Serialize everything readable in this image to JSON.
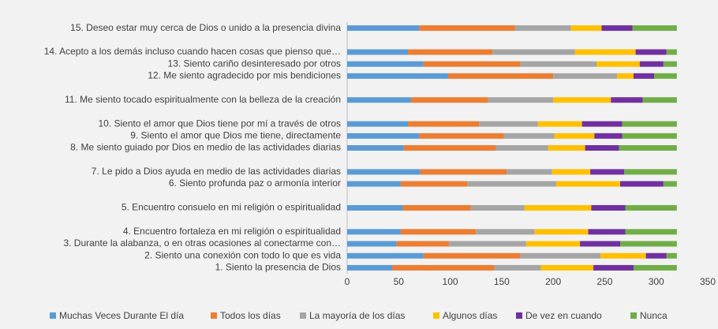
{
  "chart_data": {
    "type": "stacked_barh",
    "categories": [
      "1. Siento la presencia de Dios",
      "2. Siento una conexión con todo lo que es vida",
      "3. Durante la alabanza, o en otras ocasiones al conectarme con…",
      "4. Encuentro fortaleza en mi religión o espiritualidad",
      null,
      "5. Encuentro consuelo en mi religión o espiritualidad",
      null,
      "6. Siento profunda paz o armonía interior",
      "7. Le pido a Dios ayuda en medio de las actividades diarias",
      null,
      "8. Me siento guiado por Dios en medio de las actividades diarias",
      "9. Siento el amor que Dios me tiene, directamente",
      "10. Siento el amor que Dios tiene por mí a través de otros",
      null,
      "11. Me siento tocado espiritualmente con la belleza de la creación",
      null,
      "12. Me siento agradecido por mis bendiciones",
      "13. Siento cariño desinteresado por otros",
      "14. Acepto a los demás incluso cuando hacen cosas que pienso que…",
      null,
      "15. Deseo estar muy cerca de Dios o unido a la presencia divina"
    ],
    "series": [
      {
        "name": "Muchas Veces Durante El día",
        "color": "#5b9bd5",
        "values": [
          44,
          74,
          48,
          52,
          null,
          54,
          null,
          52,
          71,
          null,
          55,
          70,
          59,
          null,
          62,
          null,
          98,
          74,
          59,
          null,
          70
        ]
      },
      {
        "name": "Todos los días",
        "color": "#ed7d31",
        "values": [
          99,
          94,
          51,
          73,
          null,
          66,
          null,
          65,
          84,
          null,
          89,
          82,
          69,
          null,
          75,
          null,
          102,
          94,
          82,
          null,
          93
        ]
      },
      {
        "name": "La mayoría de los días",
        "color": "#a5a5a5",
        "values": [
          45,
          78,
          75,
          57,
          null,
          52,
          null,
          86,
          44,
          null,
          51,
          49,
          57,
          null,
          63,
          null,
          62,
          74,
          80,
          null,
          54
        ]
      },
      {
        "name": "Algunos días",
        "color": "#ffc000",
        "values": [
          51,
          44,
          52,
          52,
          null,
          65,
          null,
          62,
          37,
          null,
          36,
          39,
          43,
          null,
          56,
          null,
          16,
          42,
          59,
          null,
          30
        ]
      },
      {
        "name": "De vez en cuando",
        "color": "#7030a0",
        "values": [
          39,
          20,
          39,
          36,
          null,
          33,
          null,
          42,
          33,
          null,
          33,
          27,
          39,
          null,
          31,
          null,
          20,
          23,
          30,
          null,
          30
        ]
      },
      {
        "name": "Nunca",
        "color": "#70ad47",
        "values": [
          42,
          10,
          55,
          50,
          null,
          50,
          null,
          13,
          51,
          null,
          56,
          53,
          53,
          null,
          33,
          null,
          22,
          13,
          10,
          null,
          43
        ]
      }
    ],
    "xlim": [
      0,
      350
    ],
    "xticks": [
      0,
      50,
      100,
      150,
      200,
      250,
      300,
      350
    ],
    "legend": "bottom"
  }
}
